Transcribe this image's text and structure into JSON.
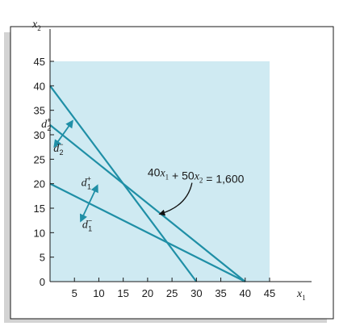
{
  "chart_data": {
    "type": "line",
    "xlabel": "x",
    "xlabel_sub": "1",
    "ylabel": "x",
    "ylabel_sub": "2",
    "xlim": [
      0,
      45
    ],
    "ylim": [
      0,
      45
    ],
    "x_ticks": [
      "0",
      "5",
      "10",
      "15",
      "20",
      "25",
      "30",
      "35",
      "40",
      "45"
    ],
    "y_ticks": [
      "0",
      "5",
      "10",
      "15",
      "20",
      "25",
      "30",
      "35",
      "40",
      "45"
    ],
    "region": {
      "x": [
        0,
        45
      ],
      "y": [
        0,
        45
      ],
      "color": "#cfeaf2"
    },
    "lines": [
      {
        "id": "line-a",
        "points": [
          [
            0,
            40
          ],
          [
            30,
            0
          ]
        ]
      },
      {
        "id": "line-b",
        "points": [
          [
            0,
            32
          ],
          [
            40,
            0
          ]
        ]
      },
      {
        "id": "line-c",
        "points": [
          [
            0,
            20
          ],
          [
            40,
            0
          ]
        ]
      }
    ],
    "line_color": "#1f8fa6",
    "annotation": {
      "parts": [
        {
          "text": "40",
          "italic": false
        },
        {
          "text": "x",
          "italic": true,
          "sub": "1"
        },
        {
          "text": " + 50",
          "italic": false
        },
        {
          "text": "x",
          "italic": true,
          "sub": "2"
        },
        {
          "text": " = 1,600",
          "italic": false
        }
      ],
      "anchor": [
        20,
        21.5
      ],
      "arrow_to": [
        22.5,
        13.8
      ]
    },
    "deviation_labels": [
      {
        "id": "d2-plus",
        "base": "d",
        "sub": "2",
        "sup": "+",
        "at": [
          -1.8,
          31.5
        ]
      },
      {
        "id": "d2-minus",
        "base": "d",
        "sub": "2",
        "sup": "−",
        "at": [
          0.7,
          26.5
        ]
      },
      {
        "id": "d1-plus",
        "base": "d",
        "sub": "1",
        "sup": "+",
        "at": [
          6.4,
          19.5
        ]
      },
      {
        "id": "d1-minus",
        "base": "d",
        "sub": "1",
        "sup": "−",
        "at": [
          6.6,
          11.0
        ]
      }
    ],
    "deviation_arrows": [
      {
        "id": "d2-arrow",
        "from": [
          0.9,
          27.6
        ],
        "to": [
          4.6,
          32.8
        ]
      },
      {
        "id": "d1-arrow",
        "from": [
          6.3,
          12.4
        ],
        "to": [
          9.7,
          19.6
        ]
      }
    ]
  }
}
